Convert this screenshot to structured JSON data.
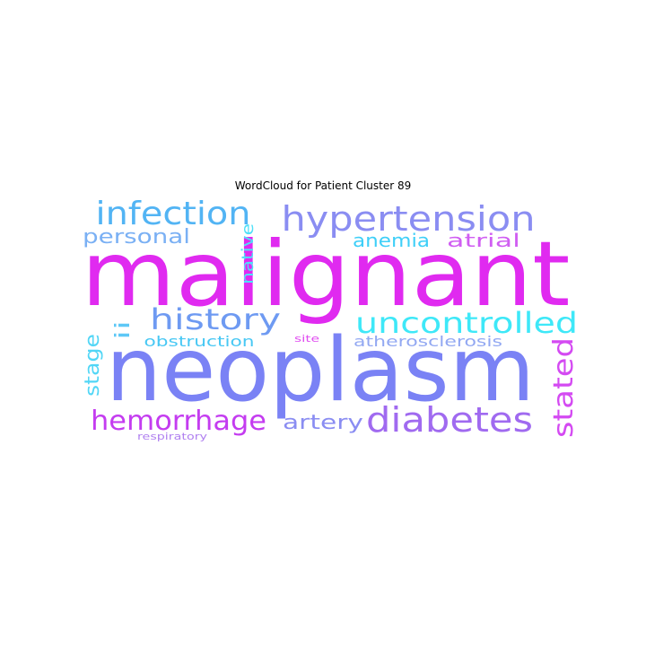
{
  "title": "WordCloud for Patient Cluster 89",
  "words": [
    {
      "text": "malignant",
      "color": "#e02af0"
    },
    {
      "text": "neoplasm",
      "color": "#7a82f5"
    },
    {
      "text": "hypertension",
      "color": "#8a8df2"
    },
    {
      "text": "infection",
      "color": "#52b4f4"
    },
    {
      "text": "uncontrolled",
      "color": "#3ee8f8"
    },
    {
      "text": "history",
      "color": "#6e9af2"
    },
    {
      "text": "diabetes",
      "color": "#a06af0"
    },
    {
      "text": "hemorrhage",
      "color": "#c43cf0"
    },
    {
      "text": "stated",
      "color": "#d44af2"
    },
    {
      "text": "personal",
      "color": "#7ab0f4"
    },
    {
      "text": "anemia",
      "color": "#3ecff8"
    },
    {
      "text": "atrial",
      "color": "#d05ef2"
    },
    {
      "text": "artery",
      "color": "#8a8df2"
    },
    {
      "text": "native",
      "color": "#4ee0f8"
    },
    {
      "text": "ii",
      "color": "#5ec8f6"
    },
    {
      "text": "stage",
      "color": "#52d6f6"
    },
    {
      "text": "obstruction",
      "color": "#48c8f4"
    },
    {
      "text": "atherosclerosis",
      "color": "#92a8f2"
    },
    {
      "text": "site",
      "color": "#e04cf0"
    },
    {
      "text": "respiratory",
      "color": "#b080f0"
    }
  ]
}
